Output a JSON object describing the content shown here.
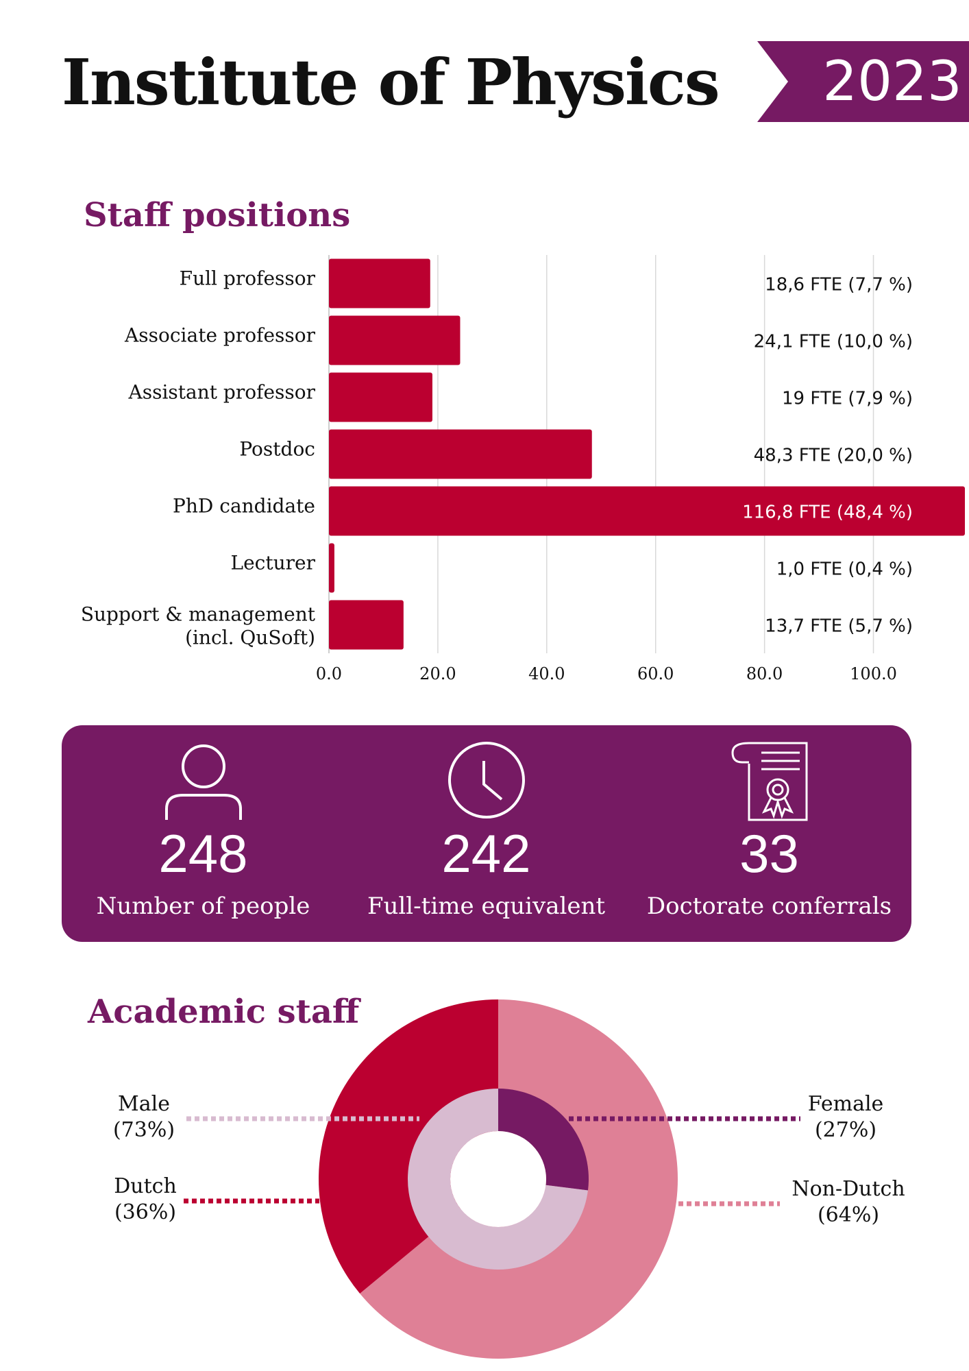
{
  "header": {
    "title": "Institute of Physics",
    "year": "2023"
  },
  "colors": {
    "accent_purple": "#761a63",
    "bar_red": "#bb0030",
    "light_pink": "#df8096",
    "light_lavender": "#d8bbd0",
    "gridline": "#d8d8d8"
  },
  "staff_section": {
    "title": "Staff positions"
  },
  "stats": [
    {
      "icon": "person-icon",
      "value": "248",
      "label": "Number of people"
    },
    {
      "icon": "clock-icon",
      "value": "242",
      "label": "Full-time equivalent"
    },
    {
      "icon": "certificate-icon",
      "value": "33",
      "label": "Doctorate conferrals"
    }
  ],
  "academic_section": {
    "title": "Academic staff"
  },
  "chart_data": [
    {
      "type": "bar",
      "orientation": "horizontal",
      "categories": [
        "Full professor",
        "Associate professor",
        "Assistant professor",
        "Postdoc",
        "PhD candidate",
        "Lecturer",
        "Support & management (incl. QuSoft)"
      ],
      "values": [
        18.6,
        24.1,
        19,
        48.3,
        116.8,
        1.0,
        13.7
      ],
      "value_labels": [
        "18,6 FTE  (7,7 %)",
        "24,1 FTE  (10,0 %)",
        "19 FTE  (7,9 %)",
        "48,3 FTE  (20,0 %)",
        "116,8 FTE  (48,4 %)",
        "1,0 FTE  (0,4 %)",
        "13,7 FTE  (5,7 %)"
      ],
      "x_ticks": [
        "0.0",
        "20.0",
        "40.0",
        "60.0",
        "80.0",
        "100.0"
      ],
      "xlim": [
        0,
        116.8
      ],
      "grid": true
    },
    {
      "type": "pie",
      "variant": "nested-donut",
      "outer": {
        "labels": [
          "Dutch",
          "Non-Dutch"
        ],
        "percent_labels": [
          "(36%)",
          "(64%)"
        ],
        "values": [
          36,
          64
        ],
        "colors": [
          "#bb0030",
          "#df8096"
        ]
      },
      "inner": {
        "labels": [
          "Male",
          "Female"
        ],
        "percent_labels": [
          "(73%)",
          "(27%)"
        ],
        "values": [
          73,
          27
        ],
        "colors": [
          "#d8bbd0",
          "#761a63"
        ]
      }
    }
  ]
}
